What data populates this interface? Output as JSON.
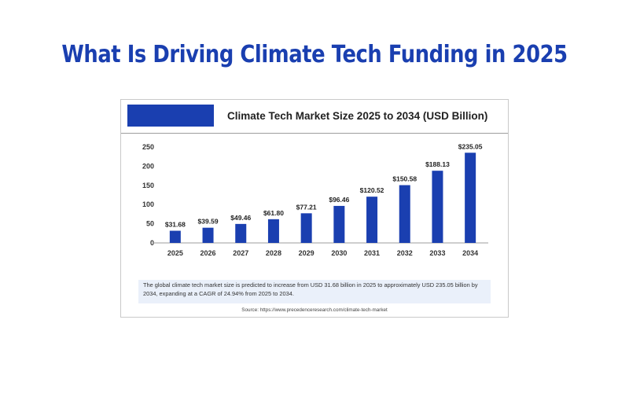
{
  "page": {
    "title": "What Is Driving Climate Tech Funding in 2025"
  },
  "colors": {
    "title": "#1a3fb0",
    "bar": "#1a3fb0",
    "brand_block": "#1a3fb0",
    "axis": "#9e9e9e"
  },
  "card": {
    "chart_title": "Climate Tech Market Size 2025 to 2034 (USD Billion)",
    "summary": "The global climate tech market size is predicted to increase from USD 31.68 billion in 2025 to approximately USD 235.05 billion by 2034, expanding at a CAGR of 24.94% from 2025 to 2034.",
    "source": "Source: https://www.precedenceresearch.com/climate-tech-market"
  },
  "chart_data": {
    "type": "bar",
    "categories": [
      "2025",
      "2026",
      "2027",
      "2028",
      "2029",
      "2030",
      "2031",
      "2032",
      "2033",
      "2034"
    ],
    "values": [
      31.68,
      39.59,
      49.46,
      61.8,
      77.21,
      96.46,
      120.52,
      150.58,
      188.13,
      235.05
    ],
    "data_labels": [
      "$31.68",
      "$39.59",
      "$49.46",
      "$61.80",
      "$77.21",
      "$96.46",
      "$120.52",
      "$150.58",
      "$188.13",
      "$235.05"
    ],
    "yticks": [
      0,
      50,
      100,
      150,
      200,
      250
    ],
    "ylim": [
      0,
      250
    ],
    "title": "Climate Tech Market Size 2025 to 2034 (USD Billion)",
    "xlabel": "",
    "ylabel": "",
    "grid": false,
    "legend": "none"
  }
}
